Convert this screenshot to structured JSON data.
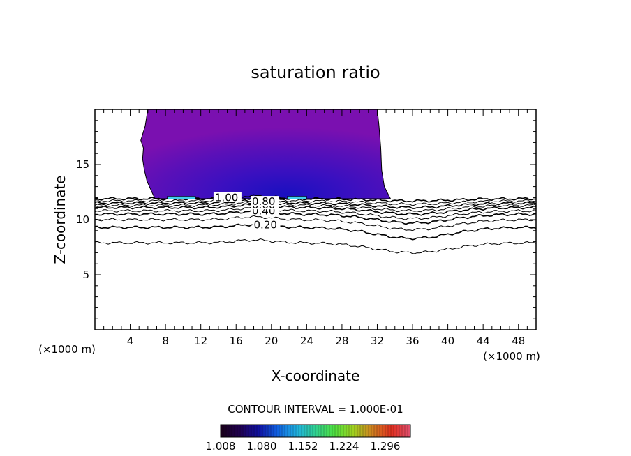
{
  "chart_data": {
    "type": "contour",
    "title": "saturation ratio",
    "xlabel": "X-coordinate",
    "ylabel": "Z-coordinate",
    "x_unit_left": "(×1000 m)",
    "x_unit_right": "(×1000 m)",
    "xlim": [
      0,
      50
    ],
    "ylim": [
      0,
      20
    ],
    "x_ticks": [
      4,
      8,
      12,
      16,
      20,
      24,
      28,
      32,
      36,
      40,
      44,
      48
    ],
    "y_ticks": [
      5,
      10,
      15
    ],
    "contour_interval_text": "CONTOUR INTERVAL = 1.000E-01",
    "contour_lines": [
      {
        "level": 0.1,
        "z": 7.9,
        "dip": 0.9,
        "label": ""
      },
      {
        "level": 0.2,
        "z": 9.3,
        "dip": 1.0,
        "label": "0.20",
        "label_x": 18
      },
      {
        "level": 0.3,
        "z": 10.0,
        "dip": 0.9,
        "label": ""
      },
      {
        "level": 0.4,
        "z": 10.5,
        "dip": 0.8,
        "label": "0.40",
        "label_x": 17.8
      },
      {
        "level": 0.5,
        "z": 10.8,
        "dip": 0.7,
        "label": ""
      },
      {
        "level": 0.6,
        "z": 11.1,
        "dip": 0.6,
        "label": "0.60",
        "label_x": 17.8
      },
      {
        "level": 0.7,
        "z": 11.3,
        "dip": 0.5,
        "label": ""
      },
      {
        "level": 0.8,
        "z": 11.5,
        "dip": 0.4,
        "label": "0.80",
        "label_x": 17.8
      },
      {
        "level": 0.9,
        "z": 11.7,
        "dip": 0.3,
        "label": ""
      },
      {
        "level": 1.0,
        "z": 11.9,
        "dip": 0.2,
        "label": "1.00",
        "label_x": 13.6
      }
    ],
    "supersaturated_region": {
      "x_range": [
        5.5,
        33.5
      ],
      "z_range": [
        11.9,
        20
      ],
      "max_near_x": 18,
      "max_near_z": 12.2
    },
    "colorbar": {
      "min": 1.008,
      "max": 1.34,
      "tick_labels": [
        "1.008",
        "1.080",
        "1.152",
        "1.224",
        "1.296"
      ],
      "colors": [
        "#1a0018",
        "#200050",
        "#1010a0",
        "#1060e0",
        "#20b0e0",
        "#30d090",
        "#50e040",
        "#a0d020",
        "#d08020",
        "#e03020",
        "#e05070"
      ]
    },
    "colors": {
      "frame": "#000000",
      "region_outer": "#7a10b0",
      "region_inner": "#1a10c0",
      "highlight": "#40d0f0"
    }
  }
}
